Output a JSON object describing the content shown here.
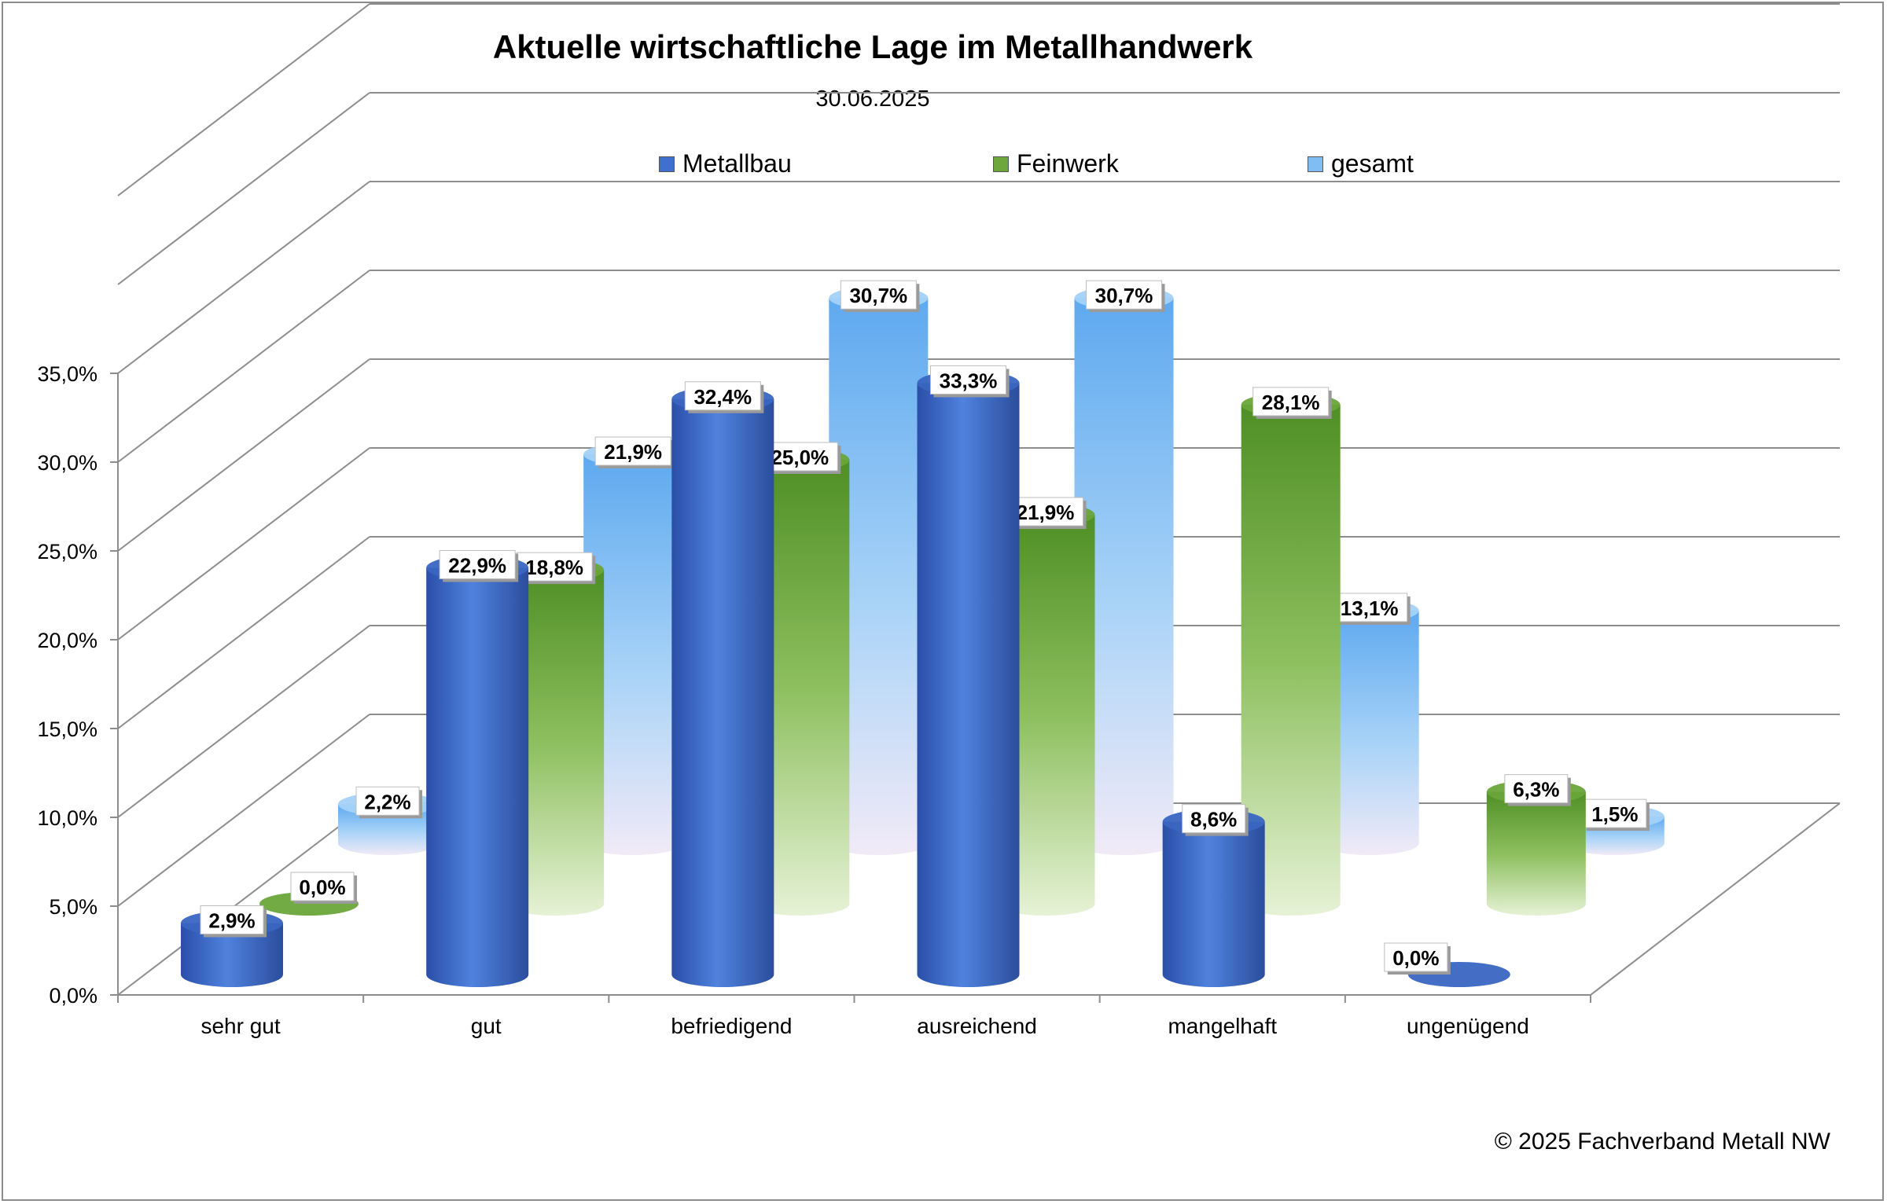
{
  "title": "Aktuelle wirtschaftliche Lage im Metallhandwerk",
  "subtitle": "30.06.2025",
  "footer": "© 2025 Fachverband Metall NW",
  "chart_data": {
    "type": "bar",
    "title": "Aktuelle wirtschaftliche Lage im Metallhandwerk",
    "subtitle": "30.06.2025",
    "categories": [
      "sehr gut",
      "gut",
      "befriedigend",
      "ausreichend",
      "mangelhaft",
      "ungenügend"
    ],
    "series": [
      {
        "name": "Metallbau",
        "color": "#3f6fcf",
        "values": [
          2.9,
          22.9,
          32.4,
          33.3,
          8.6,
          0.0
        ],
        "labels": [
          "2,9%",
          "22,9%",
          "32,4%",
          "33,3%",
          "8,6%",
          "0,0%"
        ]
      },
      {
        "name": "Feinwerk",
        "color": "#6ea83c",
        "values": [
          0.0,
          18.8,
          25.0,
          21.9,
          28.1,
          6.3
        ],
        "labels": [
          "0,0%",
          "18,8%",
          "25,0%",
          "21,9%",
          "28,1%",
          "6,3%"
        ]
      },
      {
        "name": "gesamt",
        "color": "#7fbdf2",
        "values": [
          2.2,
          21.9,
          30.7,
          30.7,
          13.1,
          1.5
        ],
        "labels": [
          "2,2%",
          "21,9%",
          "30,7%",
          "30,7%",
          "13,1%",
          "1,5%"
        ]
      }
    ],
    "ylim": [
      0,
      35
    ],
    "yticks": [
      "0,0%",
      "5,0%",
      "10,0%",
      "15,0%",
      "20,0%",
      "25,0%",
      "30,0%",
      "35,0%"
    ],
    "legend_position": "top",
    "grid": true,
    "style": "3d-cylinder"
  }
}
